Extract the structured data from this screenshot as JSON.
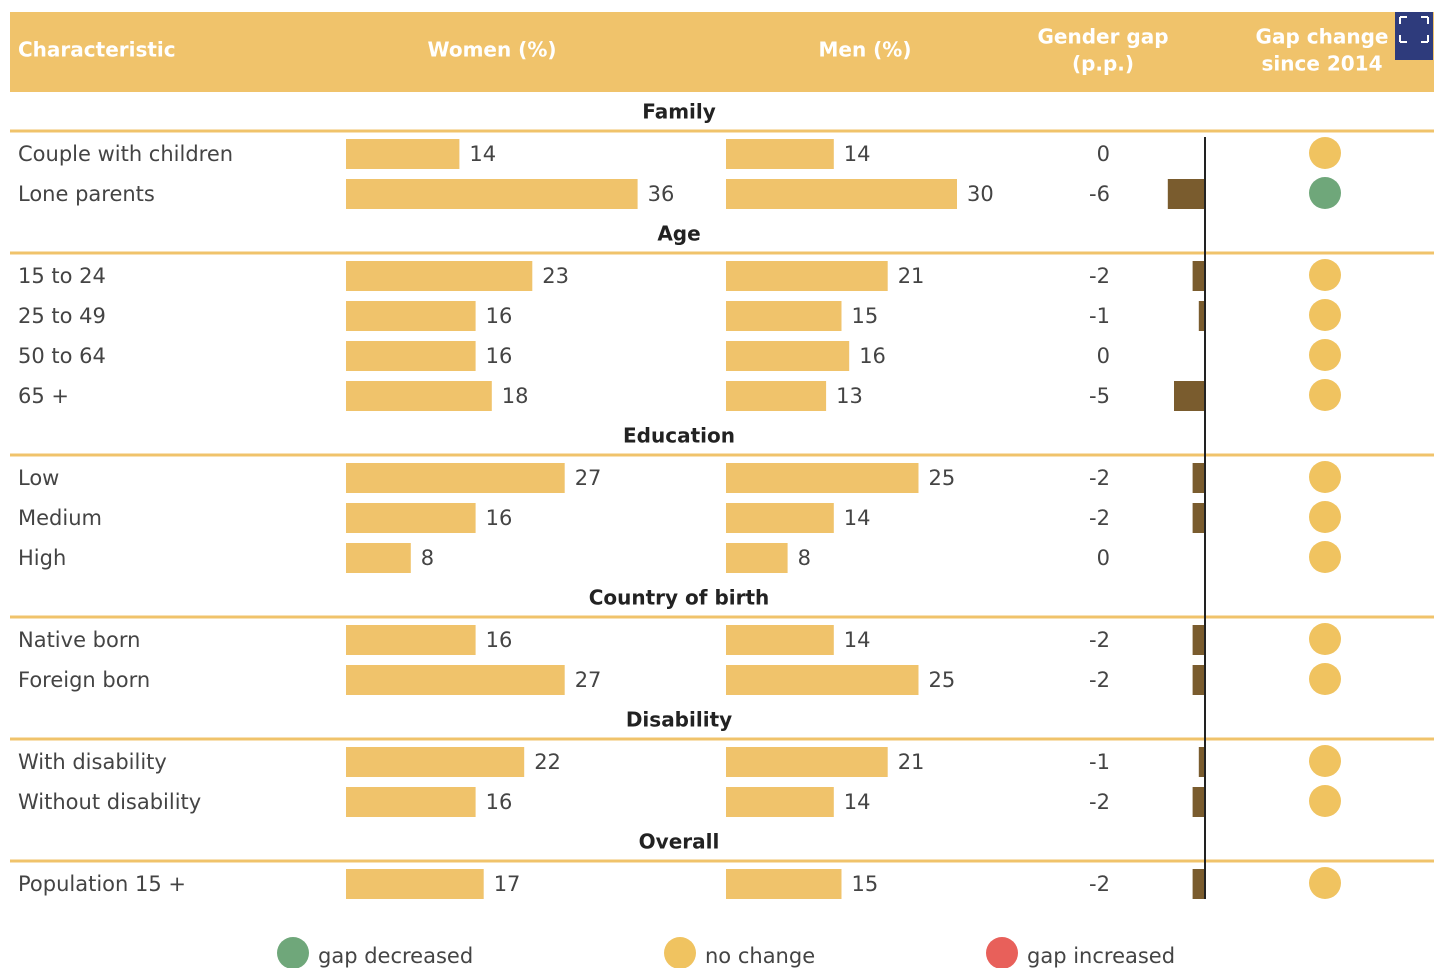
{
  "chart_data": {
    "type": "table-bars",
    "columns": [
      "Characteristic",
      "Women (%)",
      "Men (%)",
      [
        "Gender gap",
        "(p.p.)"
      ],
      [
        "Gap change",
        "since 2014"
      ]
    ],
    "bar_color": "#f0c36b",
    "gap_color": "#7a5c2e",
    "groups": [
      {
        "title": "Family",
        "rows": [
          {
            "label": "Couple with children",
            "women": 14,
            "men": 14,
            "gap": 0,
            "change_color": "#f0c360"
          },
          {
            "label": "Lone parents",
            "women": 36,
            "men": 30,
            "gap": -6,
            "change_color": "#6fa77a"
          }
        ]
      },
      {
        "title": "Age",
        "rows": [
          {
            "label": "15 to 24",
            "women": 23,
            "men": 21,
            "gap": -2,
            "change_color": "#f0c360"
          },
          {
            "label": "25 to 49",
            "women": 16,
            "men": 15,
            "gap": -1,
            "change_color": "#f0c360"
          },
          {
            "label": "50 to 64",
            "women": 16,
            "men": 16,
            "gap": 0,
            "change_color": "#f0c360"
          },
          {
            "label": "65 +",
            "women": 18,
            "men": 13,
            "gap": -5,
            "change_color": "#f0c360"
          }
        ]
      },
      {
        "title": "Education",
        "rows": [
          {
            "label": "Low",
            "women": 27,
            "men": 25,
            "gap": -2,
            "change_color": "#f0c360"
          },
          {
            "label": "Medium",
            "women": 16,
            "men": 14,
            "gap": -2,
            "change_color": "#f0c360"
          },
          {
            "label": "High",
            "women": 8,
            "men": 8,
            "gap": 0,
            "change_color": "#f0c360"
          }
        ]
      },
      {
        "title": "Country of birth",
        "rows": [
          {
            "label": "Native born",
            "women": 16,
            "men": 14,
            "gap": -2,
            "change_color": "#f0c360"
          },
          {
            "label": "Foreign born",
            "women": 27,
            "men": 25,
            "gap": -2,
            "change_color": "#f0c360"
          }
        ]
      },
      {
        "title": "Disability",
        "rows": [
          {
            "label": "With disability",
            "women": 22,
            "men": 21,
            "gap": -1,
            "change_color": "#f0c360"
          },
          {
            "label": "Without disability",
            "women": 16,
            "men": 14,
            "gap": -2,
            "change_color": "#f0c360"
          }
        ]
      },
      {
        "title": "Overall",
        "rows": [
          {
            "label": "Population 15 +",
            "women": 17,
            "men": 15,
            "gap": -2,
            "change_color": "#f0c360"
          }
        ]
      }
    ],
    "legend": [
      {
        "label": "gap decreased",
        "color": "#6fa77a"
      },
      {
        "label": "no change",
        "color": "#f0c360"
      },
      {
        "label": "gap increased",
        "color": "#e8605a"
      }
    ]
  }
}
